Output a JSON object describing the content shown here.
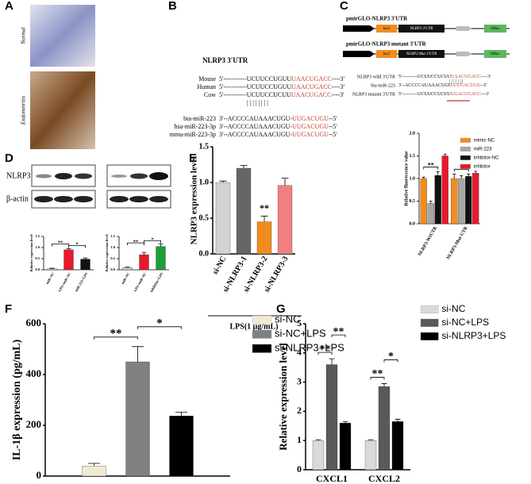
{
  "panels": [
    "A",
    "B",
    "C",
    "D",
    "E",
    "F",
    "G"
  ],
  "panel_a": {
    "labels": [
      "Normal",
      "Endometritis"
    ]
  },
  "panel_b": {
    "title": "NLRP3 3'UTR",
    "rows": [
      {
        "label": "Mouse",
        "pre": "5'-----------UCUUCCUGUU",
        "site": "UAACUGACC",
        "post": "----3'"
      },
      {
        "label": "Human",
        "pre": "5'-----------UCUUCCUGUU",
        "site": "UAACUGACC",
        "post": "----3'"
      },
      {
        "label": "Cow",
        "pre": "5'-----------UCUUCCUCUU",
        "site": "UAACUGACC",
        "post": "----3'"
      },
      {
        "label": "bta-miR-223",
        "pre": "3'--ACCCCAUAAACUGU-",
        "site": "UUGACUGU",
        "post": "--5'"
      },
      {
        "label": "hsa-miR-223-3p",
        "pre": "3'--ACCCCAUAAACUGU-",
        "site": "UUGACUGU",
        "post": "--5'"
      },
      {
        "label": "mmu-miR-223-3p",
        "pre": "3'--ACCCCAUAAACUGU-",
        "site": "UUGACUGU",
        "post": "--5'"
      }
    ]
  },
  "panel_c": {
    "constructs": [
      "pmirGLO-NLRP3 3'UTR",
      "pmirGLO-NLRP3 mutant 3'UTR"
    ],
    "boxes": [
      "luc2",
      "NLRP3 3'UTR",
      "hRluc",
      "NLRP3 Mut 3'UTR"
    ],
    "rows": [
      {
        "label": "NLRP3 wild 3'UTR",
        "pre": "5'----------UCUUCCUCUU",
        "site": "UAACUGACC",
        "post": "----3'"
      },
      {
        "label": "bta-miR-223",
        "pre": "3'--ACCCCAUAAACUGU-",
        "site": "UUGACUGU",
        "post": "--5'"
      },
      {
        "label": "NLRP3 mutant 3'UTR",
        "pre": "5'----------UCUUCCUCUU",
        "site": "UGACUGACC",
        "post": "---3'"
      }
    ]
  },
  "panel_d": {
    "blots": [
      "NLRP3",
      "β-actin"
    ]
  },
  "chart_data": [
    {
      "type": "bar",
      "categories": [
        "NLRP3-WtUTR",
        "NLRP3-Mut-UTR"
      ],
      "y_label": "Relative fluorescence value",
      "ylim": [
        0,
        2
      ],
      "yticks": [
        {
          "value": 0,
          "label": "0.0"
        },
        {
          "value": 0.5,
          "label": "0.5"
        },
        {
          "value": 1,
          "label": "1.0"
        },
        {
          "value": 1.5,
          "label": "1.5"
        },
        {
          "value": 2,
          "label": "2.0"
        }
      ],
      "series": [
        {
          "name": "mimic-NC",
          "color": "#f28c1e",
          "values": [
            1.0,
            1.0
          ],
          "errors": [
            0.03,
            0.1
          ]
        },
        {
          "name": "miR-223",
          "color": "#a6a6a6",
          "values": [
            0.45,
            1.0
          ],
          "errors": [
            0.05,
            0.06
          ]
        },
        {
          "name": "inhibitor-NC",
          "color": "#111111",
          "values": [
            1.07,
            1.05
          ],
          "errors": [
            0.08,
            0.05
          ]
        },
        {
          "name": "inhibitor",
          "color": "#e8192c",
          "values": [
            1.5,
            1.12
          ],
          "errors": [
            0.04,
            0.04
          ]
        }
      ],
      "annotations": [
        "**",
        "*"
      ]
    },
    {
      "type": "bar",
      "categories": [
        "miR-NC",
        "LPS+miR-NC",
        "miR-223+LPS"
      ],
      "y_label": "Relative expression level",
      "ylim": [
        0,
        1.5
      ],
      "yticks": [
        {
          "value": 0,
          "label": "0.0"
        },
        {
          "value": 0.5,
          "label": "0.5"
        },
        {
          "value": 1,
          "label": "1.0"
        },
        {
          "value": 1.5,
          "label": "1.5"
        }
      ],
      "values": [
        0.05,
        0.9,
        0.48
      ],
      "errors": [
        0.02,
        0.05,
        0.05
      ],
      "colors": [
        "#c8c8c8",
        "#e8192c",
        "#111111"
      ],
      "annotations": [
        "**",
        "*"
      ]
    },
    {
      "type": "bar",
      "categories": [
        "miR-NC",
        "LPS+miR-NC",
        "inhibitor+LPS"
      ],
      "y_label": "Relative expression level",
      "ylim": [
        0,
        1.5
      ],
      "yticks": [
        {
          "value": 0,
          "label": "0.0"
        },
        {
          "value": 0.5,
          "label": "0.5"
        },
        {
          "value": 1,
          "label": "1.0"
        },
        {
          "value": 1.5,
          "label": "1.5"
        }
      ],
      "values": [
        0.1,
        0.68,
        1.05
      ],
      "errors": [
        0.02,
        0.1,
        0.12
      ],
      "colors": [
        "#c8c8c8",
        "#e8192c",
        "#1e9e3a"
      ],
      "annotations": [
        "**",
        "*"
      ]
    },
    {
      "type": "bar",
      "categories": [
        "si-NC",
        "si-NLRP3-1",
        "si-NLRP3-2",
        "si-NLRP3-3"
      ],
      "y_label": "NLRP3 expression level",
      "x_label": "LPS(1 μg/mL)",
      "ylim": [
        0,
        1.5
      ],
      "yticks": [
        {
          "value": 0,
          "label": "0.0"
        },
        {
          "value": 0.5,
          "label": "0.5"
        },
        {
          "value": 1,
          "label": "1.0"
        },
        {
          "value": 1.5,
          "label": "1.5"
        }
      ],
      "values": [
        1.0,
        1.2,
        0.45,
        0.96
      ],
      "errors": [
        0.02,
        0.04,
        0.08,
        0.1
      ],
      "colors": [
        "#d3d3d3",
        "#666666",
        "#f28c1e",
        "#f08080"
      ],
      "annotations": [
        "**"
      ]
    },
    {
      "type": "bar",
      "categories": [
        null
      ],
      "y_label": "IL-1β  expression (pg/mL)",
      "ylim": [
        0,
        600
      ],
      "yticks": [
        0,
        200,
        400,
        600
      ],
      "series": [
        {
          "name": "si-NC",
          "color": "#efead0",
          "values": [
            40
          ],
          "errors": [
            10
          ]
        },
        {
          "name": "si-NC+LPS",
          "color": "#808080",
          "values": [
            450
          ],
          "errors": [
            60
          ]
        },
        {
          "name": "si-NLRP3+LPS",
          "color": "#000000",
          "values": [
            237
          ],
          "errors": [
            15
          ]
        }
      ],
      "annotations": [
        "**",
        "*"
      ]
    },
    {
      "type": "bar",
      "categories": [
        "CXCL1",
        "CXCL2"
      ],
      "y_label": "Relative expression level",
      "ylim": [
        0,
        5
      ],
      "yticks": [
        0,
        1,
        2,
        3,
        4,
        5
      ],
      "series": [
        {
          "name": "si-NC",
          "color": "#d9d9d9",
          "values": [
            1.0,
            1.0
          ],
          "errors": [
            0.03,
            0.03
          ]
        },
        {
          "name": "si-NC+LPS",
          "color": "#595959",
          "values": [
            3.6,
            2.85
          ],
          "errors": [
            0.2,
            0.1
          ]
        },
        {
          "name": "si-NLRP3+LPS",
          "color": "#000000",
          "values": [
            1.6,
            1.65
          ],
          "errors": [
            0.05,
            0.08
          ]
        }
      ],
      "annotations": [
        "**",
        "**",
        "**",
        "*"
      ]
    }
  ]
}
